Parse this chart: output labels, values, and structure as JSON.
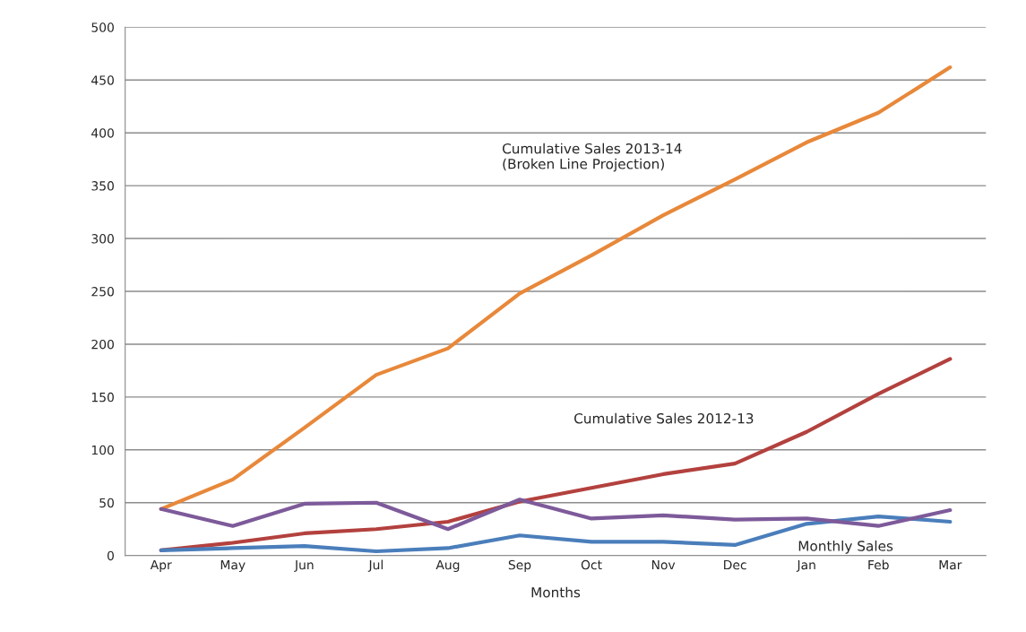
{
  "chart_data": {
    "type": "line",
    "xlabel": "Months",
    "categories": [
      "Apr",
      "May",
      "Jun",
      "Jul",
      "Aug",
      "Sep",
      "Oct",
      "Nov",
      "Dec",
      "Jan",
      "Feb",
      "Mar"
    ],
    "series": [
      {
        "name": "Cumulative Sales 2013-14\n(Broken Line Projection)",
        "color": "#e8883a",
        "values": [
          44,
          72,
          121,
          171,
          196,
          248,
          284,
          322,
          356,
          391,
          419,
          462
        ]
      },
      {
        "name": "Cumulative Sales 2012-13",
        "color": "#b3413e",
        "values": [
          5,
          12,
          21,
          25,
          32,
          51,
          64,
          77,
          87,
          117,
          153,
          186
        ]
      },
      {
        "name": "Monthly Sales",
        "color": "#4a7ebb",
        "values": [
          5,
          7,
          9,
          4,
          7,
          19,
          13,
          13,
          10,
          30,
          37,
          32
        ]
      },
      {
        "color": "#7d5a9a",
        "values": [
          44,
          28,
          49,
          50,
          25,
          53,
          35,
          38,
          34,
          35,
          28,
          43
        ]
      }
    ],
    "ylim": [
      0,
      500
    ],
    "yticks": [
      0,
      50,
      100,
      150,
      200,
      250,
      300,
      350,
      400,
      450,
      500
    ],
    "grid": "y",
    "marker": "none",
    "line_style": "solid"
  }
}
